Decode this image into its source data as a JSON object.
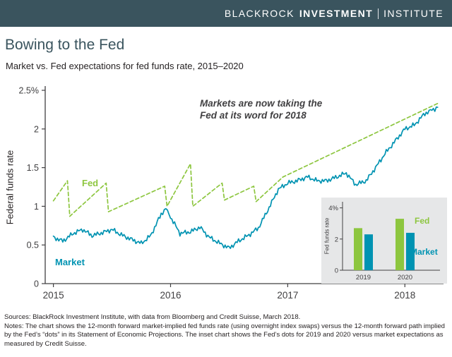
{
  "header": {
    "brand_blackrock": "BLACKROCK",
    "brand_investment": "INVESTMENT",
    "brand_institute": "INSTITUTE"
  },
  "colors": {
    "header_bg": "#3a545e",
    "title": "#3a545e",
    "fed_green": "#8dc63f",
    "market_teal": "#0093b2",
    "axis": "#414042",
    "inset_bg": "#e6e7e8"
  },
  "chart_data": [
    {
      "type": "line",
      "title": "Bowing to the Fed",
      "subtitle": "Market vs. Fed expectations for fed funds rate, 2015–2020",
      "xlabel": "",
      "ylabel": "Federal funds rate",
      "xlim": [
        2014.93,
        2018.33
      ],
      "ylim": [
        0,
        2.5
      ],
      "grid": false,
      "annotation_lines": [
        "Markets are now taking the",
        "Fed at its word for 2018"
      ],
      "yticks": [
        {
          "v": 0,
          "label": "0"
        },
        {
          "v": 0.5,
          "label": "0.5"
        },
        {
          "v": 1,
          "label": "1"
        },
        {
          "v": 1.5,
          "label": "1.5"
        },
        {
          "v": 2,
          "label": "2"
        },
        {
          "v": 2.5,
          "label": "2.5%"
        }
      ],
      "xticks": [
        {
          "v": 2015,
          "label": "2015"
        },
        {
          "v": 2016,
          "label": "2016"
        },
        {
          "v": 2017,
          "label": "2017"
        },
        {
          "v": 2018,
          "label": "2018"
        }
      ],
      "series": [
        {
          "name": "Fed",
          "color": "#8dc63f",
          "dash": true,
          "noisy": false,
          "points": [
            [
              2015.0,
              1.07
            ],
            [
              2015.12,
              1.33
            ],
            [
              2015.14,
              0.87
            ],
            [
              2015.45,
              1.3
            ],
            [
              2015.47,
              0.93
            ],
            [
              2015.95,
              1.26
            ],
            [
              2015.97,
              1.0
            ],
            [
              2016.17,
              1.55
            ],
            [
              2016.19,
              1.0
            ],
            [
              2016.44,
              1.3
            ],
            [
              2016.46,
              1.08
            ],
            [
              2016.71,
              1.26
            ],
            [
              2016.73,
              1.06
            ],
            [
              2016.96,
              1.38
            ],
            [
              2018.28,
              2.33
            ]
          ]
        },
        {
          "name": "Market",
          "color": "#0093b2",
          "dash": false,
          "noisy": true,
          "points": [
            [
              2015.0,
              0.6
            ],
            [
              2015.08,
              0.55
            ],
            [
              2015.17,
              0.65
            ],
            [
              2015.25,
              0.7
            ],
            [
              2015.33,
              0.62
            ],
            [
              2015.42,
              0.66
            ],
            [
              2015.5,
              0.7
            ],
            [
              2015.58,
              0.63
            ],
            [
              2015.67,
              0.57
            ],
            [
              2015.75,
              0.52
            ],
            [
              2015.83,
              0.62
            ],
            [
              2015.92,
              0.9
            ],
            [
              2015.96,
              0.97
            ],
            [
              2016.0,
              0.86
            ],
            [
              2016.08,
              0.65
            ],
            [
              2016.17,
              0.67
            ],
            [
              2016.25,
              0.73
            ],
            [
              2016.33,
              0.6
            ],
            [
              2016.42,
              0.52
            ],
            [
              2016.5,
              0.46
            ],
            [
              2016.58,
              0.55
            ],
            [
              2016.67,
              0.63
            ],
            [
              2016.75,
              0.72
            ],
            [
              2016.83,
              0.95
            ],
            [
              2016.92,
              1.22
            ],
            [
              2017.0,
              1.3
            ],
            [
              2017.08,
              1.33
            ],
            [
              2017.17,
              1.38
            ],
            [
              2017.25,
              1.33
            ],
            [
              2017.33,
              1.33
            ],
            [
              2017.42,
              1.38
            ],
            [
              2017.5,
              1.43
            ],
            [
              2017.58,
              1.28
            ],
            [
              2017.67,
              1.33
            ],
            [
              2017.75,
              1.5
            ],
            [
              2017.83,
              1.68
            ],
            [
              2017.92,
              1.85
            ],
            [
              2018.0,
              2.0
            ],
            [
              2018.08,
              2.05
            ],
            [
              2018.17,
              2.2
            ],
            [
              2018.28,
              2.28
            ]
          ]
        }
      ]
    },
    {
      "type": "bar",
      "title": "",
      "xlabel": "",
      "ylabel": "Fed funds rate",
      "ylim": [
        0,
        4.3
      ],
      "categories": [
        "2019",
        "2020"
      ],
      "yticks": [
        {
          "v": 0,
          "label": "0"
        },
        {
          "v": 2,
          "label": "2"
        },
        {
          "v": 4,
          "label": "4%"
        }
      ],
      "series": [
        {
          "name": "Fed",
          "color": "#8dc63f",
          "values": [
            2.7,
            3.3
          ]
        },
        {
          "name": "Market",
          "color": "#0093b2",
          "values": [
            2.3,
            2.4
          ]
        }
      ]
    }
  ],
  "footer": {
    "sources": "Sources: BlackRock Investment Institute, with data from Bloomberg and Credit Suisse, March 2018.",
    "notes": "Notes: The chart shows the 12-month forward market-implied fed funds rate (using overnight index swaps) versus the 12-month forward path implied by the Fed’s “dots” in its Statement of Economic Projections. The inset chart shows the Fed’s dots for 2019 and 2020 versus market expectations as measured by Credit Suisse."
  }
}
